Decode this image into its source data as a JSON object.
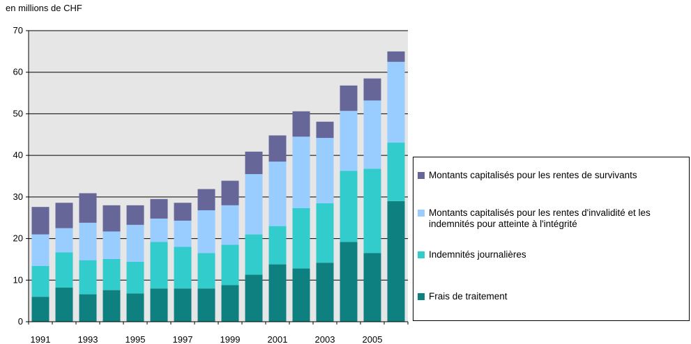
{
  "chart_data": {
    "type": "stacked-bar",
    "y_label": "en millions de CHF",
    "categories": [
      "1991",
      null,
      "1993",
      null,
      "1995",
      null,
      "1997",
      null,
      "1999",
      null,
      "2001",
      null,
      "2003",
      null,
      "2005",
      null
    ],
    "series": [
      {
        "name": "Frais de traitement",
        "color": "#0f8080",
        "values": [
          6.0,
          8.2,
          6.6,
          7.6,
          6.8,
          8.0,
          8.0,
          8.0,
          8.8,
          11.3,
          13.8,
          12.8,
          14.2,
          19.2,
          16.5,
          29.0
        ]
      },
      {
        "name": "Indemnités journalières",
        "color": "#33cccc",
        "values": [
          7.4,
          8.5,
          8.2,
          7.5,
          7.6,
          11.2,
          10.0,
          8.5,
          9.7,
          9.7,
          9.2,
          14.5,
          14.3,
          17.1,
          20.3,
          14.1
        ]
      },
      {
        "name": "Montants capitalisés pour les rentes d'invalidité et les indemnités pour atteinte à l'intégrité",
        "color": "#99ccff",
        "values": [
          7.6,
          5.8,
          9.0,
          6.6,
          8.9,
          5.6,
          6.3,
          10.3,
          9.5,
          14.5,
          15.5,
          17.2,
          15.7,
          14.4,
          16.4,
          19.4
        ]
      },
      {
        "name": "Montants capitalisés pour les rentes de survivants",
        "color": "#666699",
        "values": [
          6.6,
          6.1,
          7.1,
          6.3,
          4.7,
          4.7,
          4.3,
          5.1,
          5.9,
          5.4,
          6.3,
          6.1,
          3.9,
          6.1,
          5.3,
          2.5
        ]
      }
    ],
    "ylim": [
      0,
      70
    ],
    "yticks": [
      0,
      10,
      20,
      30,
      40,
      50,
      60,
      70
    ],
    "grid": true,
    "legend": "right"
  }
}
